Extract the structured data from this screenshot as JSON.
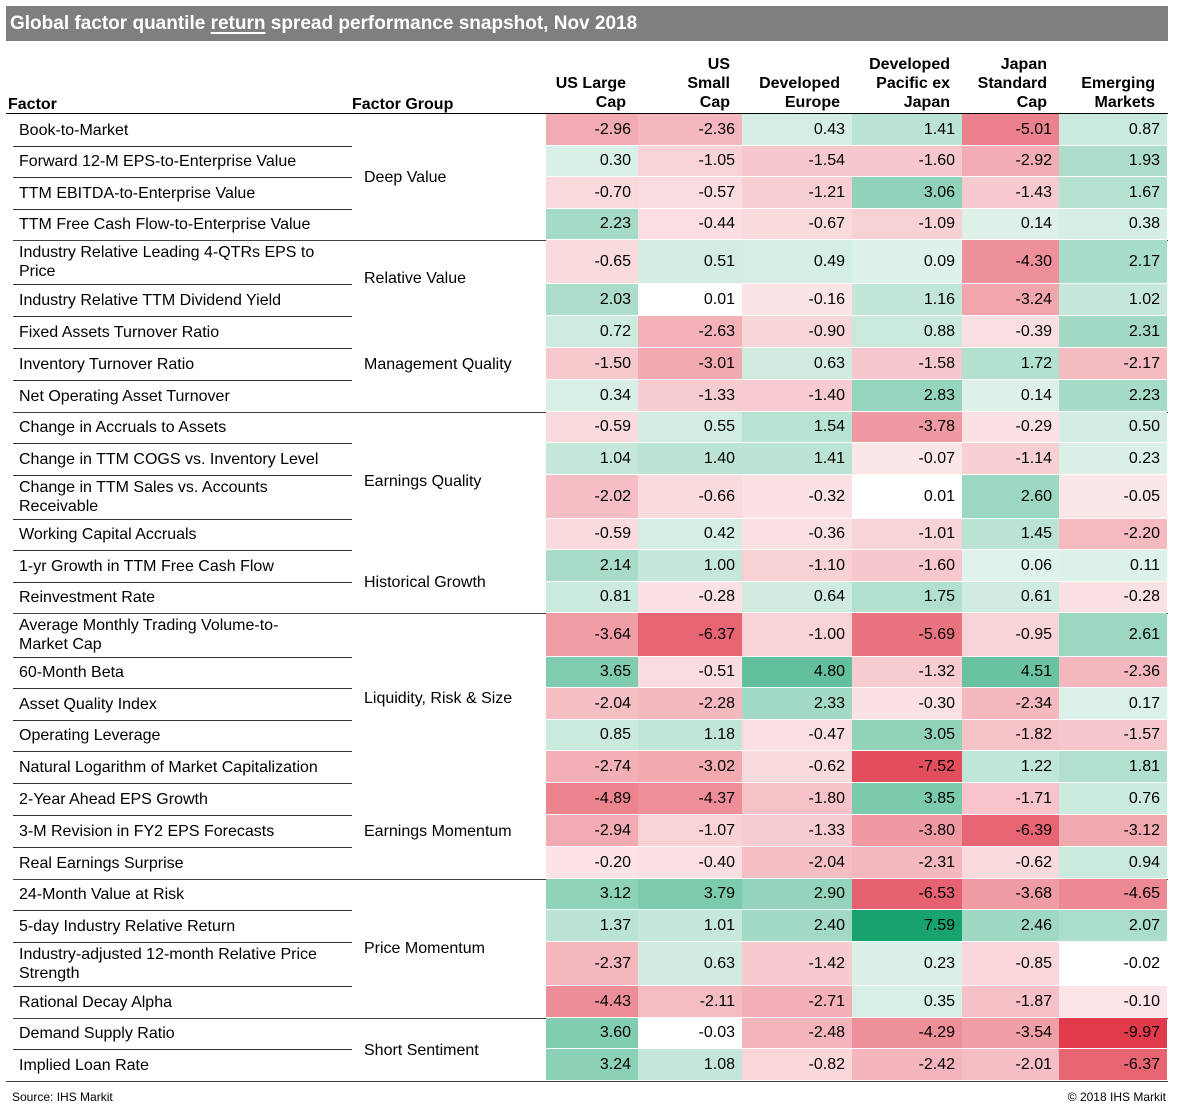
{
  "title": {
    "part1": "Global factor quantile ",
    "part2": "return",
    "part3": " spread performance snapshot, Nov 2018"
  },
  "headers": {
    "factor": "Factor",
    "group": "Factor Group",
    "columns": [
      [
        "US Large",
        "Cap"
      ],
      [
        "US",
        "Small",
        "Cap"
      ],
      [
        "Developed",
        "Europe"
      ],
      [
        "Developed",
        "Pacific ex",
        "Japan"
      ],
      [
        "Japan",
        "Standard",
        "Cap"
      ],
      [
        "Emerging",
        "Markets"
      ]
    ]
  },
  "chart_data": {
    "type": "table",
    "columns": [
      "US Large Cap",
      "US Small Cap",
      "Developed Europe",
      "Developed Pacific ex Japan",
      "Japan Standard Cap",
      "Emerging Markets"
    ],
    "groups": [
      {
        "name": "Deep Value",
        "rows": [
          {
            "factor": [
              "Book-to-Market"
            ],
            "values": [
              "-2.96",
              "-2.36",
              "0.43",
              "1.41",
              "-5.01",
              "0.87"
            ]
          },
          {
            "factor": [
              "Forward 12-M EPS-to-Enterprise Value"
            ],
            "values": [
              "0.30",
              "-1.05",
              "-1.54",
              "-1.60",
              "-2.92",
              "1.93"
            ]
          },
          {
            "factor": [
              "TTM EBITDA-to-Enterprise Value"
            ],
            "values": [
              "-0.70",
              "-0.57",
              "-1.21",
              "3.06",
              "-1.43",
              "1.67"
            ]
          },
          {
            "factor": [
              "TTM Free Cash Flow-to-Enterprise Value"
            ],
            "values": [
              "2.23",
              "-0.44",
              "-0.67",
              "-1.09",
              "0.14",
              "0.38"
            ]
          }
        ]
      },
      {
        "name": "Relative Value",
        "rows": [
          {
            "factor": [
              "Industry Relative Leading 4-QTRs EPS to",
              "Price"
            ],
            "values": [
              "-0.65",
              "0.51",
              "0.49",
              "0.09",
              "-4.30",
              "2.17"
            ]
          },
          {
            "factor": [
              "Industry Relative TTM Dividend Yield"
            ],
            "values": [
              "2.03",
              "0.01",
              "-0.16",
              "1.16",
              "-3.24",
              "1.02"
            ]
          }
        ]
      },
      {
        "name": "Management Quality",
        "rows": [
          {
            "factor": [
              "Fixed Assets Turnover Ratio"
            ],
            "values": [
              "0.72",
              "-2.63",
              "-0.90",
              "0.88",
              "-0.39",
              "2.31"
            ]
          },
          {
            "factor": [
              "Inventory Turnover Ratio"
            ],
            "values": [
              "-1.50",
              "-3.01",
              "0.63",
              "-1.58",
              "1.72",
              "-2.17"
            ]
          },
          {
            "factor": [
              "Net Operating Asset Turnover"
            ],
            "values": [
              "0.34",
              "-1.33",
              "-1.40",
              "2.83",
              "0.14",
              "2.23"
            ]
          }
        ]
      },
      {
        "name": "Earnings Quality",
        "rows": [
          {
            "factor": [
              "Change in Accruals to Assets"
            ],
            "values": [
              "-0.59",
              "0.55",
              "1.54",
              "-3.78",
              "-0.29",
              "0.50"
            ]
          },
          {
            "factor": [
              "Change in TTM COGS vs. Inventory Level"
            ],
            "values": [
              "1.04",
              "1.40",
              "1.41",
              "-0.07",
              "-1.14",
              "0.23"
            ]
          },
          {
            "factor": [
              "Change in TTM Sales vs. Accounts",
              "Receivable"
            ],
            "values": [
              "-2.02",
              "-0.66",
              "-0.32",
              "0.01",
              "2.60",
              "-0.05"
            ]
          },
          {
            "factor": [
              "Working Capital Accruals"
            ],
            "values": [
              "-0.59",
              "0.42",
              "-0.36",
              "-1.01",
              "1.45",
              "-2.20"
            ]
          }
        ]
      },
      {
        "name": "Historical Growth",
        "rows": [
          {
            "factor": [
              "1-yr Growth in TTM Free Cash Flow"
            ],
            "values": [
              "2.14",
              "1.00",
              "-1.10",
              "-1.60",
              "0.06",
              "0.11"
            ]
          },
          {
            "factor": [
              "Reinvestment Rate"
            ],
            "values": [
              "0.81",
              "-0.28",
              "0.64",
              "1.75",
              "0.61",
              "-0.28"
            ]
          }
        ]
      },
      {
        "name": "Liquidity, Risk & Size",
        "rows": [
          {
            "factor": [
              "Average Monthly Trading Volume-to-",
              "Market Cap"
            ],
            "values": [
              "-3.64",
              "-6.37",
              "-1.00",
              "-5.69",
              "-0.95",
              "2.61"
            ]
          },
          {
            "factor": [
              "60-Month Beta"
            ],
            "values": [
              "3.65",
              "-0.51",
              "4.80",
              "-1.32",
              "4.51",
              "-2.36"
            ]
          },
          {
            "factor": [
              "Asset Quality Index"
            ],
            "values": [
              "-2.04",
              "-2.28",
              "2.33",
              "-0.30",
              "-2.34",
              "0.17"
            ]
          },
          {
            "factor": [
              "Operating Leverage"
            ],
            "values": [
              "0.85",
              "1.18",
              "-0.47",
              "3.05",
              "-1.82",
              "-1.57"
            ]
          },
          {
            "factor": [
              "Natural Logarithm of Market Capitalization"
            ],
            "values": [
              "-2.74",
              "-3.02",
              "-0.62",
              "-7.52",
              "1.22",
              "1.81"
            ]
          }
        ]
      },
      {
        "name": "Earnings Momentum",
        "rows": [
          {
            "factor": [
              "2-Year Ahead EPS Growth"
            ],
            "values": [
              "-4.89",
              "-4.37",
              "-1.80",
              "3.85",
              "-1.71",
              "0.76"
            ]
          },
          {
            "factor": [
              "3-M Revision in FY2 EPS Forecasts"
            ],
            "values": [
              "-2.94",
              "-1.07",
              "-1.33",
              "-3.80",
              "-6.39",
              "-3.12"
            ]
          },
          {
            "factor": [
              "Real Earnings Surprise"
            ],
            "values": [
              "-0.20",
              "-0.40",
              "-2.04",
              "-2.31",
              "-0.62",
              "0.94"
            ]
          }
        ]
      },
      {
        "name": "Price Momentum",
        "rows": [
          {
            "factor": [
              "24-Month Value at Risk"
            ],
            "values": [
              "3.12",
              "3.79",
              "2.90",
              "-6.53",
              "-3.68",
              "-4.65"
            ]
          },
          {
            "factor": [
              "5-day Industry Relative Return"
            ],
            "values": [
              "1.37",
              "1.01",
              "2.40",
              "7.59",
              "2.46",
              "2.07"
            ]
          },
          {
            "factor": [
              "Industry-adjusted 12-month Relative Price",
              "Strength"
            ],
            "values": [
              "-2.37",
              "0.63",
              "-1.42",
              "0.23",
              "-0.85",
              "-0.02"
            ]
          },
          {
            "factor": [
              "Rational Decay Alpha"
            ],
            "values": [
              "-4.43",
              "-2.11",
              "-2.71",
              "0.35",
              "-1.87",
              "-0.10"
            ]
          }
        ]
      },
      {
        "name": "Short Sentiment",
        "rows": [
          {
            "factor": [
              "Demand Supply Ratio"
            ],
            "values": [
              "3.60",
              "-0.03",
              "-2.48",
              "-4.29",
              "-3.54",
              "-9.97"
            ]
          },
          {
            "factor": [
              "Implied Loan Rate"
            ],
            "values": [
              "3.24",
              "1.08",
              "-0.82",
              "-2.42",
              "-2.01",
              "-6.37"
            ]
          }
        ]
      }
    ]
  },
  "colors": {
    "title_bg": "#7f7f7f",
    "neutral": "#ffffff",
    "positive_max": "#00b050",
    "negative_max": "#e03a4b"
  },
  "footer": {
    "source": "Source: IHS Markit",
    "copyright": "© 2018 IHS Markit"
  }
}
